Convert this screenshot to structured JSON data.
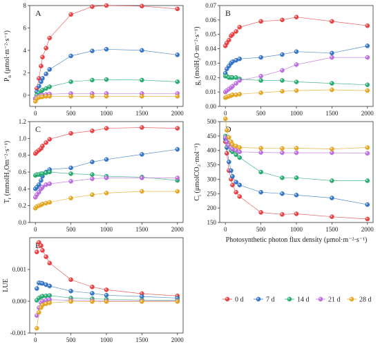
{
  "palette": {
    "0 d": "#e8393b",
    "7 d": "#2e6fc4",
    "14 d": "#20a86b",
    "21 d": "#b768de",
    "28 d": "#e2a31b"
  },
  "chart_data": [
    {
      "type": "scatter",
      "panel": "A",
      "ylabel_main": "P",
      "ylabel_sub": "n",
      "ylabel_unit": "(μmol·m⁻²·s⁻¹)",
      "ylim": [
        -1,
        8
      ],
      "yticks": [
        0,
        2,
        4,
        6,
        8
      ],
      "xlim": [
        -80,
        2080
      ],
      "xticks": [
        0,
        500,
        1000,
        1500,
        2000
      ],
      "show_xlabel": false,
      "show_xticklabels": true,
      "series": [
        {
          "name": "0 d",
          "x": [
            0,
            20,
            50,
            80,
            100,
            150,
            200,
            500,
            800,
            1000,
            1500,
            2000
          ],
          "y": [
            -0.3,
            0.6,
            1.5,
            2.6,
            3.4,
            4.2,
            5.1,
            7.2,
            7.9,
            8.0,
            7.95,
            7.7
          ]
        },
        {
          "name": "7 d",
          "x": [
            0,
            20,
            50,
            80,
            100,
            150,
            200,
            500,
            800,
            1000,
            1500,
            2000
          ],
          "y": [
            -0.3,
            0.3,
            0.8,
            1.2,
            1.5,
            1.9,
            2.3,
            3.5,
            3.95,
            4.1,
            4.0,
            3.6
          ]
        },
        {
          "name": "14 d",
          "x": [
            0,
            20,
            50,
            80,
            100,
            150,
            200,
            500,
            800,
            1000,
            1500,
            2000
          ],
          "y": [
            -0.3,
            0.0,
            0.2,
            0.35,
            0.45,
            0.6,
            0.75,
            1.2,
            1.35,
            1.4,
            1.35,
            1.2
          ]
        },
        {
          "name": "21 d",
          "x": [
            0,
            20,
            50,
            80,
            100,
            150,
            200,
            500,
            800,
            1000,
            1500,
            2000
          ],
          "y": [
            -0.3,
            -0.2,
            -0.1,
            0.0,
            0.0,
            0.05,
            0.1,
            0.15,
            0.15,
            0.15,
            0.15,
            0.15
          ]
        },
        {
          "name": "28 d",
          "x": [
            0,
            20,
            50,
            80,
            100,
            150,
            200,
            500,
            800,
            1000,
            1500,
            2000
          ],
          "y": [
            -0.55,
            -0.3,
            -0.2,
            -0.15,
            -0.15,
            -0.1,
            -0.1,
            -0.1,
            -0.1,
            -0.1,
            -0.1,
            -0.1
          ]
        }
      ]
    },
    {
      "type": "scatter",
      "panel": "B",
      "ylabel_main": "g",
      "ylabel_sub": "s",
      "ylabel_unit": "(molH₂O·m⁻²·s⁻¹)",
      "ylim": [
        0,
        0.07
      ],
      "yticks": [
        0.0,
        0.01,
        0.02,
        0.03,
        0.04,
        0.05,
        0.06,
        0.07
      ],
      "ytickfmt": 2,
      "xlim": [
        -80,
        2080
      ],
      "xticks": [
        0,
        500,
        1000,
        1500,
        2000
      ],
      "show_xlabel": false,
      "show_xticklabels": true,
      "series": [
        {
          "name": "0 d",
          "x": [
            0,
            20,
            50,
            80,
            100,
            150,
            200,
            500,
            800,
            1000,
            1500,
            2000
          ],
          "y": [
            0.042,
            0.044,
            0.046,
            0.049,
            0.05,
            0.052,
            0.055,
            0.059,
            0.06,
            0.062,
            0.059,
            0.056
          ]
        },
        {
          "name": "7 d",
          "x": [
            0,
            20,
            50,
            80,
            100,
            150,
            200,
            500,
            800,
            1000,
            1500,
            2000
          ],
          "y": [
            0.023,
            0.026,
            0.028,
            0.03,
            0.031,
            0.032,
            0.033,
            0.034,
            0.036,
            0.038,
            0.037,
            0.042
          ]
        },
        {
          "name": "14 d",
          "x": [
            0,
            20,
            50,
            80,
            100,
            150,
            200,
            500,
            800,
            1000,
            1500,
            2000
          ],
          "y": [
            0.021,
            0.021,
            0.02,
            0.02,
            0.02,
            0.02,
            0.019,
            0.018,
            0.018,
            0.017,
            0.016,
            0.015
          ]
        },
        {
          "name": "21 d",
          "x": [
            0,
            20,
            50,
            80,
            100,
            150,
            200,
            500,
            800,
            1000,
            1500,
            2000
          ],
          "y": [
            0.01,
            0.011,
            0.012,
            0.013,
            0.014,
            0.016,
            0.018,
            0.021,
            0.025,
            0.029,
            0.034,
            0.034
          ]
        },
        {
          "name": "28 d",
          "x": [
            0,
            20,
            50,
            80,
            100,
            150,
            200,
            500,
            800,
            1000,
            1500,
            2000
          ],
          "y": [
            0.006,
            0.0065,
            0.007,
            0.0075,
            0.008,
            0.008,
            0.0085,
            0.0095,
            0.0105,
            0.011,
            0.0115,
            0.011
          ]
        }
      ]
    },
    {
      "type": "scatter",
      "panel": "C",
      "ylabel_main": "T",
      "ylabel_sub": "r",
      "ylabel_unit": "(mmolH₂Om⁻²·s⁻¹)",
      "ylim": [
        0,
        1.2
      ],
      "yticks": [
        0.0,
        0.2,
        0.4,
        0.6,
        0.8,
        1.0,
        1.2
      ],
      "ytickfmt": 1,
      "xlim": [
        -80,
        2080
      ],
      "xticks": [
        0,
        500,
        1000,
        1500,
        2000
      ],
      "show_xlabel": false,
      "show_xticklabels": true,
      "series": [
        {
          "name": "0 d",
          "x": [
            0,
            20,
            50,
            80,
            100,
            150,
            200,
            500,
            800,
            1000,
            1500,
            2000
          ],
          "y": [
            0.82,
            0.84,
            0.86,
            0.88,
            0.91,
            0.95,
            0.99,
            1.06,
            1.09,
            1.12,
            1.13,
            1.12
          ]
        },
        {
          "name": "7 d",
          "x": [
            0,
            20,
            50,
            80,
            100,
            150,
            200,
            500,
            800,
            1000,
            1500,
            2000
          ],
          "y": [
            0.4,
            0.42,
            0.45,
            0.5,
            0.55,
            0.6,
            0.63,
            0.65,
            0.72,
            0.75,
            0.81,
            0.87
          ]
        },
        {
          "name": "14 d",
          "x": [
            0,
            20,
            50,
            80,
            100,
            150,
            200,
            500,
            800,
            1000,
            1500,
            2000
          ],
          "y": [
            0.56,
            0.57,
            0.57,
            0.58,
            0.58,
            0.59,
            0.6,
            0.58,
            0.57,
            0.55,
            0.54,
            0.5
          ]
        },
        {
          "name": "21 d",
          "x": [
            0,
            20,
            50,
            80,
            100,
            150,
            200,
            500,
            800,
            1000,
            1500,
            2000
          ],
          "y": [
            0.3,
            0.33,
            0.36,
            0.4,
            0.42,
            0.45,
            0.46,
            0.49,
            0.52,
            0.53,
            0.53,
            0.53
          ]
        },
        {
          "name": "28 d",
          "x": [
            0,
            20,
            50,
            80,
            100,
            150,
            200,
            500,
            800,
            1000,
            1500,
            2000
          ],
          "y": [
            0.17,
            0.19,
            0.2,
            0.21,
            0.22,
            0.23,
            0.24,
            0.29,
            0.33,
            0.35,
            0.37,
            0.37
          ]
        }
      ]
    },
    {
      "type": "scatter",
      "panel": "D",
      "ylabel_main": "C",
      "ylabel_sub": "i",
      "ylabel_unit": "(μmolCO₂·mol⁻¹)",
      "ylim": [
        150,
        500
      ],
      "yticks": [
        150,
        200,
        250,
        300,
        350,
        400,
        450,
        500
      ],
      "xlim": [
        -80,
        2080
      ],
      "xticks": [
        0,
        500,
        1000,
        1500,
        2000
      ],
      "show_xlabel": true,
      "show_xticklabels": true,
      "xlabel": "Photosynthetic photon flux density (μmol·m⁻²·s⁻¹)",
      "series": [
        {
          "name": "0 d",
          "x": [
            0,
            20,
            50,
            80,
            100,
            150,
            200,
            500,
            800,
            1000,
            1500,
            2000
          ],
          "y": [
            430,
            390,
            330,
            300,
            280,
            255,
            240,
            185,
            178,
            180,
            170,
            162
          ]
        },
        {
          "name": "7 d",
          "x": [
            0,
            20,
            50,
            80,
            100,
            150,
            200,
            500,
            800,
            1000,
            1500,
            2000
          ],
          "y": [
            440,
            410,
            360,
            330,
            310,
            290,
            280,
            255,
            250,
            245,
            235,
            212
          ]
        },
        {
          "name": "14 d",
          "x": [
            0,
            20,
            50,
            80,
            100,
            150,
            200,
            500,
            800,
            1000,
            1500,
            2000
          ],
          "y": [
            450,
            430,
            415,
            400,
            395,
            385,
            375,
            325,
            305,
            305,
            295,
            295
          ]
        },
        {
          "name": "21 d",
          "x": [
            0,
            20,
            50,
            80,
            100,
            150,
            200,
            500,
            800,
            1000,
            1500,
            2000
          ],
          "y": [
            445,
            430,
            418,
            410,
            405,
            400,
            395,
            393,
            392,
            392,
            392,
            390
          ]
        },
        {
          "name": "28 d",
          "x": [
            0,
            20,
            50,
            80,
            100,
            150,
            200,
            500,
            800,
            1000,
            1500,
            2000
          ],
          "y": [
            510,
            470,
            445,
            430,
            420,
            415,
            410,
            408,
            407,
            408,
            405,
            410
          ]
        }
      ]
    },
    {
      "type": "scatter",
      "panel": "E",
      "ylabel_main": "LUE",
      "ylabel_sub": "",
      "ylabel_unit": "",
      "ylim": [
        -0.001,
        0.002
      ],
      "yticks": [
        -0.001,
        0.0,
        0.001
      ],
      "ytickfmt": 3,
      "xlim": [
        -80,
        2080
      ],
      "xticks": [
        0,
        500,
        1000,
        1500,
        2000
      ],
      "show_xlabel": false,
      "show_xticklabels": true,
      "series": [
        {
          "name": "0 d",
          "x": [
            20,
            50,
            80,
            100,
            150,
            200,
            500,
            800,
            1000,
            1500,
            2000
          ],
          "y": [
            0.00155,
            0.00185,
            0.00175,
            0.0016,
            0.0014,
            0.0012,
            0.00068,
            0.00045,
            0.00036,
            0.00024,
            0.00017
          ]
        },
        {
          "name": "7 d",
          "x": [
            20,
            50,
            80,
            100,
            150,
            200,
            500,
            800,
            1000,
            1500,
            2000
          ],
          "y": [
            0.0004,
            0.00058,
            0.00057,
            0.00056,
            0.00052,
            0.00048,
            0.00032,
            0.00025,
            0.00019,
            0.00015,
            0.0001
          ]
        },
        {
          "name": "14 d",
          "x": [
            20,
            50,
            80,
            100,
            150,
            200,
            500,
            800,
            1000,
            1500,
            2000
          ],
          "y": [
            3e-05,
            0.0001,
            0.00014,
            0.00016,
            0.00017,
            0.00018,
            0.0001,
            8e-05,
            6e-05,
            4e-05,
            3e-05
          ]
        },
        {
          "name": "21 d",
          "x": [
            20,
            50,
            80,
            100,
            150,
            200,
            500,
            800,
            1000,
            1500,
            2000
          ],
          "y": [
            -0.00045,
            -0.0002,
            -5e-05,
            0.0,
            3e-05,
            5e-05,
            3e-05,
            2e-05,
            1e-05,
            1e-05,
            1e-05
          ]
        },
        {
          "name": "28 d",
          "x": [
            20,
            50,
            80,
            100,
            150,
            200,
            500,
            800,
            1000,
            1500,
            2000
          ],
          "y": [
            -0.00085,
            -0.00035,
            -0.0002,
            -0.00012,
            -8e-05,
            -5e-05,
            -1e-05,
            -1e-05,
            -1e-05,
            -1e-05,
            -1e-05
          ]
        }
      ]
    }
  ],
  "legend": {
    "placement": "bottom-right",
    "items": [
      "0 d",
      "7 d",
      "14 d",
      "21 d",
      "28 d"
    ]
  }
}
